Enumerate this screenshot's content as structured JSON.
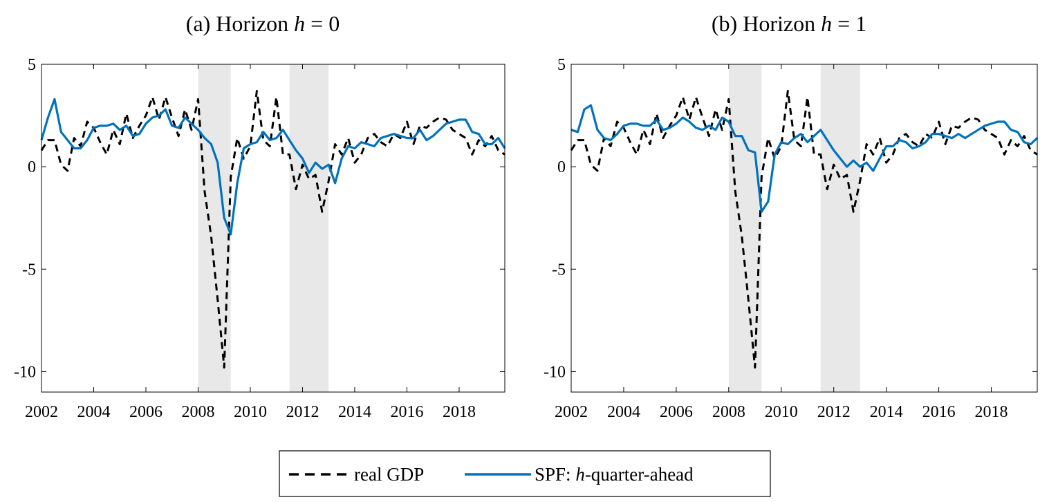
{
  "chart_data": [
    {
      "type": "line",
      "title": {
        "prefix": "(a) Horizon ",
        "var": "h",
        "suffix": " = 0"
      },
      "x_ticks": [
        "2002",
        "2004",
        "2006",
        "2008",
        "2010",
        "2012",
        "2014",
        "2016",
        "2018"
      ],
      "y_ticks": [
        "5",
        "0",
        "-5",
        "-10"
      ],
      "xlim": [
        2002.0,
        2019.75
      ],
      "ylim": [
        -11,
        5
      ],
      "grid": false,
      "shaded_periods": [
        [
          2008.0,
          2009.25
        ],
        [
          2011.5,
          2013.0
        ]
      ],
      "series": [
        {
          "name": "real GDP",
          "style": "dashed",
          "color": "#000000",
          "x": [
            2002.0,
            2002.25,
            2002.5,
            2002.75,
            2003.0,
            2003.25,
            2003.5,
            2003.75,
            2004.0,
            2004.25,
            2004.5,
            2004.75,
            2005.0,
            2005.25,
            2005.5,
            2005.75,
            2006.0,
            2006.25,
            2006.5,
            2006.75,
            2007.0,
            2007.25,
            2007.5,
            2007.75,
            2008.0,
            2008.25,
            2008.5,
            2008.75,
            2009.0,
            2009.25,
            2009.5,
            2009.75,
            2010.0,
            2010.25,
            2010.5,
            2010.75,
            2011.0,
            2011.25,
            2011.5,
            2011.75,
            2012.0,
            2012.25,
            2012.5,
            2012.75,
            2013.0,
            2013.25,
            2013.5,
            2013.75,
            2014.0,
            2014.25,
            2014.5,
            2014.75,
            2015.0,
            2015.25,
            2015.5,
            2015.75,
            2016.0,
            2016.25,
            2016.5,
            2016.75,
            2017.0,
            2017.25,
            2017.5,
            2017.75,
            2018.0,
            2018.25,
            2018.5,
            2018.75,
            2019.0,
            2019.25,
            2019.5,
            2019.75
          ],
          "values": [
            0.8,
            1.3,
            1.3,
            0.1,
            -0.2,
            1.4,
            1.0,
            2.2,
            1.9,
            1.2,
            0.6,
            1.8,
            1.1,
            2.6,
            1.4,
            2.0,
            2.5,
            3.4,
            2.3,
            3.4,
            2.4,
            1.5,
            2.8,
            1.8,
            3.3,
            -1.2,
            -3.4,
            -6.5,
            -9.8,
            -0.5,
            1.4,
            0.4,
            1.0,
            3.7,
            1.3,
            1.0,
            3.4,
            0.6,
            0.6,
            -1.1,
            0.1,
            -0.6,
            -0.4,
            -2.2,
            -0.7,
            1.1,
            0.6,
            1.4,
            0.2,
            0.6,
            1.4,
            1.6,
            1.2,
            1.0,
            1.6,
            1.4,
            2.2,
            1.1,
            2.0,
            1.9,
            2.2,
            2.4,
            2.3,
            1.8,
            1.6,
            1.4,
            0.6,
            1.3,
            1.0,
            1.5,
            0.8,
            0.6
          ]
        },
        {
          "name": "SPF: h-quarter-ahead",
          "style": "solid",
          "color": "#0072BD",
          "x": [
            2002.0,
            2002.25,
            2002.5,
            2002.75,
            2003.0,
            2003.25,
            2003.5,
            2003.75,
            2004.0,
            2004.25,
            2004.5,
            2004.75,
            2005.0,
            2005.25,
            2005.5,
            2005.75,
            2006.0,
            2006.25,
            2006.5,
            2006.75,
            2007.0,
            2007.25,
            2007.5,
            2007.75,
            2008.0,
            2008.25,
            2008.5,
            2008.75,
            2009.0,
            2009.25,
            2009.5,
            2009.75,
            2010.0,
            2010.25,
            2010.5,
            2010.75,
            2011.0,
            2011.25,
            2011.5,
            2011.75,
            2012.0,
            2012.25,
            2012.5,
            2012.75,
            2013.0,
            2013.25,
            2013.5,
            2013.75,
            2014.0,
            2014.25,
            2014.5,
            2014.75,
            2015.0,
            2015.25,
            2015.5,
            2015.75,
            2016.0,
            2016.25,
            2016.5,
            2016.75,
            2017.0,
            2017.25,
            2017.5,
            2017.75,
            2018.0,
            2018.25,
            2018.5,
            2018.75,
            2019.0,
            2019.25,
            2019.5,
            2019.75
          ],
          "values": [
            1.3,
            2.4,
            3.3,
            1.7,
            1.3,
            0.9,
            0.9,
            1.3,
            1.9,
            2.0,
            2.0,
            2.1,
            1.8,
            2.0,
            1.5,
            1.6,
            2.1,
            2.4,
            2.5,
            2.8,
            2.0,
            1.9,
            2.4,
            2.1,
            1.8,
            1.4,
            1.1,
            0.2,
            -2.5,
            -3.3,
            -0.8,
            0.9,
            1.1,
            1.2,
            1.7,
            1.3,
            1.4,
            1.8,
            1.3,
            0.8,
            0.4,
            -0.3,
            0.2,
            -0.1,
            0.1,
            -0.8,
            0.4,
            1.0,
            0.9,
            1.2,
            1.1,
            1.0,
            1.4,
            1.5,
            1.6,
            1.5,
            1.4,
            1.4,
            1.8,
            1.3,
            1.5,
            1.8,
            2.1,
            2.2,
            2.3,
            2.3,
            1.7,
            1.6,
            1.1,
            1.1,
            1.4,
            0.9
          ]
        }
      ]
    },
    {
      "type": "line",
      "title": {
        "prefix": "(b) Horizon ",
        "var": "h",
        "suffix": " = 1"
      },
      "x_ticks": [
        "2002",
        "2004",
        "2006",
        "2008",
        "2010",
        "2012",
        "2014",
        "2016",
        "2018"
      ],
      "y_ticks": [
        "5",
        "0",
        "-5",
        "-10"
      ],
      "xlim": [
        2002.0,
        2019.75
      ],
      "ylim": [
        -11,
        5
      ],
      "grid": false,
      "shaded_periods": [
        [
          2008.0,
          2009.25
        ],
        [
          2011.5,
          2013.0
        ]
      ],
      "series": [
        {
          "name": "real GDP",
          "style": "dashed",
          "color": "#000000",
          "x": [
            2002.0,
            2002.25,
            2002.5,
            2002.75,
            2003.0,
            2003.25,
            2003.5,
            2003.75,
            2004.0,
            2004.25,
            2004.5,
            2004.75,
            2005.0,
            2005.25,
            2005.5,
            2005.75,
            2006.0,
            2006.25,
            2006.5,
            2006.75,
            2007.0,
            2007.25,
            2007.5,
            2007.75,
            2008.0,
            2008.25,
            2008.5,
            2008.75,
            2009.0,
            2009.25,
            2009.5,
            2009.75,
            2010.0,
            2010.25,
            2010.5,
            2010.75,
            2011.0,
            2011.25,
            2011.5,
            2011.75,
            2012.0,
            2012.25,
            2012.5,
            2012.75,
            2013.0,
            2013.25,
            2013.5,
            2013.75,
            2014.0,
            2014.25,
            2014.5,
            2014.75,
            2015.0,
            2015.25,
            2015.5,
            2015.75,
            2016.0,
            2016.25,
            2016.5,
            2016.75,
            2017.0,
            2017.25,
            2017.5,
            2017.75,
            2018.0,
            2018.25,
            2018.5,
            2018.75,
            2019.0,
            2019.25,
            2019.5,
            2019.75
          ],
          "values": [
            0.8,
            1.3,
            1.3,
            0.1,
            -0.2,
            1.4,
            1.0,
            2.2,
            1.9,
            1.2,
            0.6,
            1.8,
            1.1,
            2.6,
            1.4,
            2.0,
            2.5,
            3.4,
            2.3,
            3.4,
            2.4,
            1.5,
            2.8,
            1.8,
            3.3,
            -1.2,
            -3.4,
            -6.5,
            -9.8,
            -0.5,
            1.4,
            0.4,
            1.0,
            3.7,
            1.3,
            1.0,
            3.4,
            0.6,
            0.6,
            -1.1,
            0.1,
            -0.6,
            -0.4,
            -2.2,
            -0.7,
            1.1,
            0.6,
            1.4,
            0.2,
            0.6,
            1.4,
            1.6,
            1.2,
            1.0,
            1.6,
            1.4,
            2.2,
            1.1,
            2.0,
            1.9,
            2.2,
            2.4,
            2.3,
            1.8,
            1.6,
            1.4,
            0.6,
            1.3,
            1.0,
            1.5,
            0.8,
            0.6
          ]
        },
        {
          "name": "SPF: h-quarter-ahead",
          "style": "solid",
          "color": "#0072BD",
          "x": [
            2002.0,
            2002.25,
            2002.5,
            2002.75,
            2003.0,
            2003.25,
            2003.5,
            2003.75,
            2004.0,
            2004.25,
            2004.5,
            2004.75,
            2005.0,
            2005.25,
            2005.5,
            2005.75,
            2006.0,
            2006.25,
            2006.5,
            2006.75,
            2007.0,
            2007.25,
            2007.5,
            2007.75,
            2008.0,
            2008.25,
            2008.5,
            2008.75,
            2009.0,
            2009.25,
            2009.5,
            2009.75,
            2010.0,
            2010.25,
            2010.5,
            2010.75,
            2011.0,
            2011.25,
            2011.5,
            2011.75,
            2012.0,
            2012.25,
            2012.5,
            2012.75,
            2013.0,
            2013.25,
            2013.5,
            2013.75,
            2014.0,
            2014.25,
            2014.5,
            2014.75,
            2015.0,
            2015.25,
            2015.5,
            2015.75,
            2016.0,
            2016.25,
            2016.5,
            2016.75,
            2017.0,
            2017.25,
            2017.5,
            2017.75,
            2018.0,
            2018.25,
            2018.5,
            2018.75,
            2019.0,
            2019.25,
            2019.5,
            2019.75
          ],
          "values": [
            1.8,
            1.7,
            2.8,
            3.0,
            1.8,
            1.4,
            1.3,
            1.6,
            2.0,
            2.1,
            2.1,
            2.0,
            2.0,
            2.3,
            1.8,
            1.9,
            2.1,
            2.4,
            2.2,
            1.9,
            1.8,
            2.0,
            1.8,
            2.4,
            2.2,
            1.5,
            1.5,
            0.8,
            0.7,
            -2.2,
            -1.7,
            0.6,
            1.2,
            1.1,
            1.4,
            1.6,
            1.2,
            1.5,
            1.8,
            1.3,
            0.8,
            0.4,
            0.0,
            0.3,
            0.0,
            0.2,
            -0.2,
            0.4,
            1.0,
            1.0,
            1.3,
            1.2,
            0.9,
            1.0,
            1.2,
            1.6,
            1.6,
            1.5,
            1.4,
            1.6,
            1.4,
            1.6,
            1.8,
            2.0,
            2.1,
            2.2,
            2.2,
            1.8,
            1.7,
            1.2,
            1.1,
            1.4
          ]
        }
      ]
    }
  ],
  "legend": {
    "gdp_label": "real GDP",
    "spf_prefix": "SPF: ",
    "spf_var": "h",
    "spf_suffix": "-quarter-ahead"
  },
  "colors": {
    "spf_line": "#0072BD",
    "gdp_line": "#000000",
    "shade": "#E8E8E8"
  }
}
